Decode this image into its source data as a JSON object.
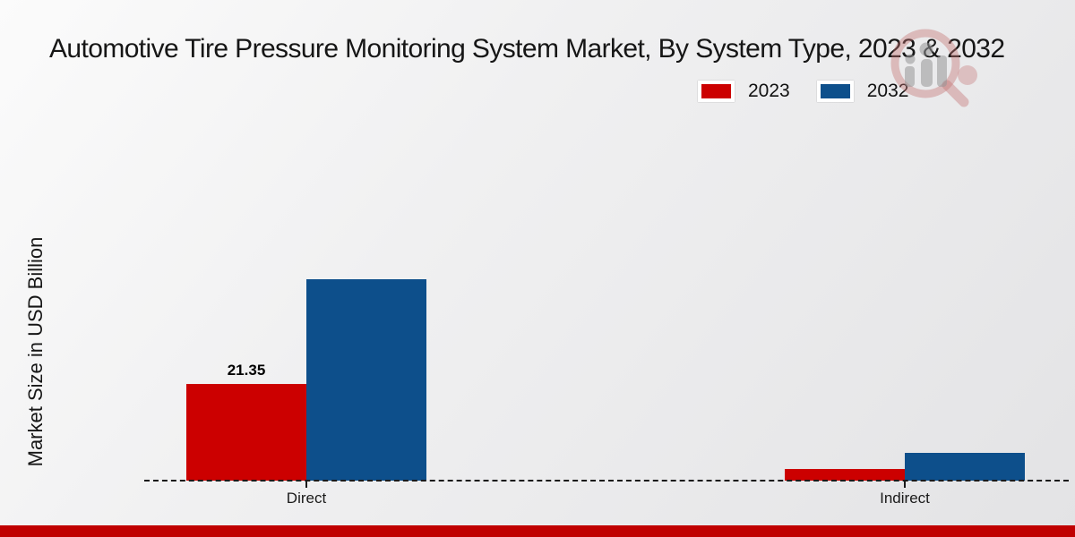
{
  "chart_data": {
    "type": "bar",
    "title": "Automotive Tire Pressure Monitoring System Market, By System Type, 2023 & 2032",
    "ylabel": "Market Size in USD Billion",
    "xlabel": "",
    "categories": [
      "Direct",
      "Indirect"
    ],
    "series": [
      {
        "name": "2023",
        "color": "#cc0000",
        "values": [
          21.35,
          2.6
        ],
        "visible_labels": [
          "21.35",
          ""
        ]
      },
      {
        "name": "2032",
        "color": "#0d4f8b",
        "values": [
          44.5,
          6.1
        ],
        "visible_labels": [
          "",
          ""
        ]
      }
    ],
    "ylim": [
      0,
      50
    ],
    "grid": false,
    "legend_position": "top-right",
    "baseline_style": "dashed",
    "visible_value_labels": [
      "21.35"
    ]
  },
  "footer": {
    "accent_color": "#c00000"
  },
  "watermark": {
    "icon": "magnifier-bar-chart-logo"
  }
}
